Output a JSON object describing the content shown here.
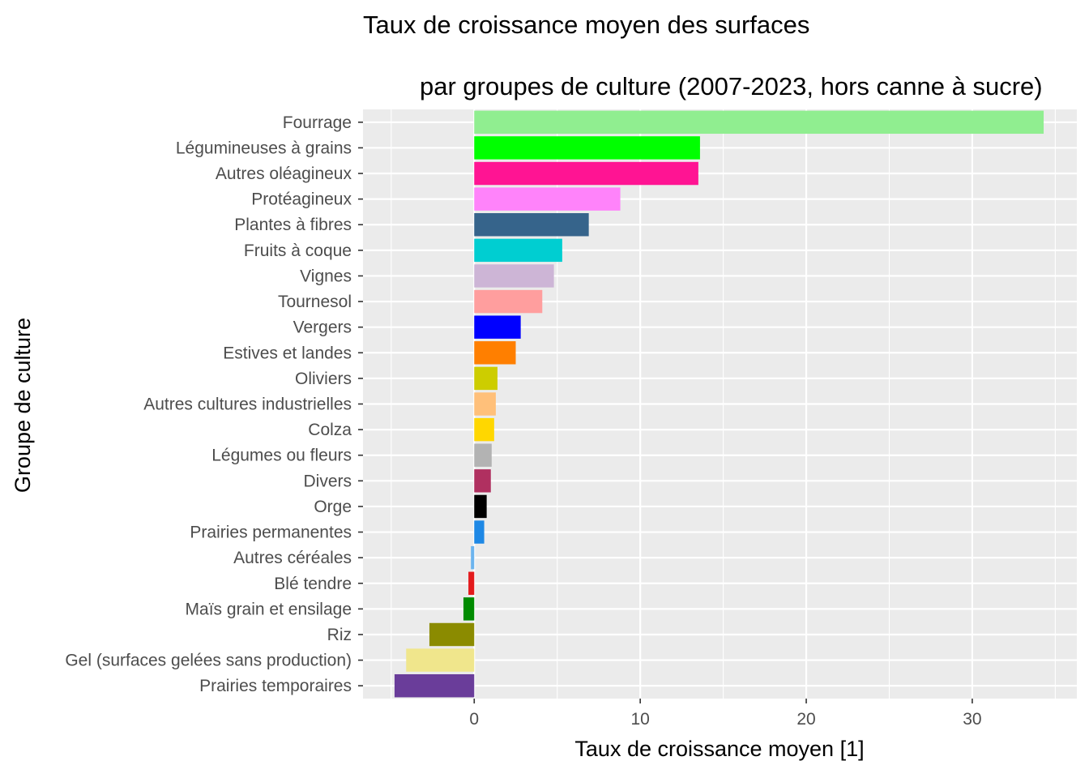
{
  "chart_data": {
    "type": "bar",
    "orientation": "horizontal",
    "title": "Taux de croissance moyen des surfaces",
    "subtitle": "par groupes de culture (2007-2023, hors canne à sucre)",
    "xlabel": "Taux de croissance moyen [1]",
    "ylabel": "Groupe de culture",
    "xlim": [
      -6.7,
      36.3
    ],
    "xticks": [
      0,
      10,
      20,
      30
    ],
    "xtick_labels": [
      "0",
      "10",
      "20",
      "30"
    ],
    "grid": true,
    "legend": "none",
    "panel_background": "#ebebeb",
    "grid_color": "#ffffff",
    "categories": [
      "Fourrage",
      "Légumineuses à grains",
      "Autres oléagineux",
      "Protéagineux",
      "Plantes à fibres",
      "Fruits à coque",
      "Vignes",
      "Tournesol",
      "Vergers",
      "Estives et landes",
      "Oliviers",
      "Autres cultures industrielles",
      "Colza",
      "Légumes ou fleurs",
      "Divers",
      "Orge",
      "Prairies permanentes",
      "Autres céréales",
      "Blé tendre",
      "Maïs grain et ensilage",
      "Riz",
      "Gel (surfaces gelées sans production)",
      "Prairies temporaires"
    ],
    "values": [
      34.3,
      13.6,
      13.5,
      8.8,
      6.9,
      5.3,
      4.8,
      4.1,
      2.8,
      2.5,
      1.4,
      1.3,
      1.2,
      1.05,
      1.0,
      0.75,
      0.6,
      -0.2,
      -0.35,
      -0.65,
      -2.7,
      -4.1,
      -4.8
    ],
    "colors": [
      "#90ee90",
      "#00ff00",
      "#ff1493",
      "#ff83fa",
      "#36648b",
      "#00ced1",
      "#cdb5d6",
      "#ff9e9e",
      "#0000ff",
      "#ff7f00",
      "#cdcd00",
      "#ffc07a",
      "#ffd700",
      "#b3b3b3",
      "#b03060",
      "#000000",
      "#1e88e5",
      "#6cb4ee",
      "#e31a1c",
      "#008b00",
      "#8b8b00",
      "#f0e68c",
      "#6a3d9a"
    ]
  }
}
